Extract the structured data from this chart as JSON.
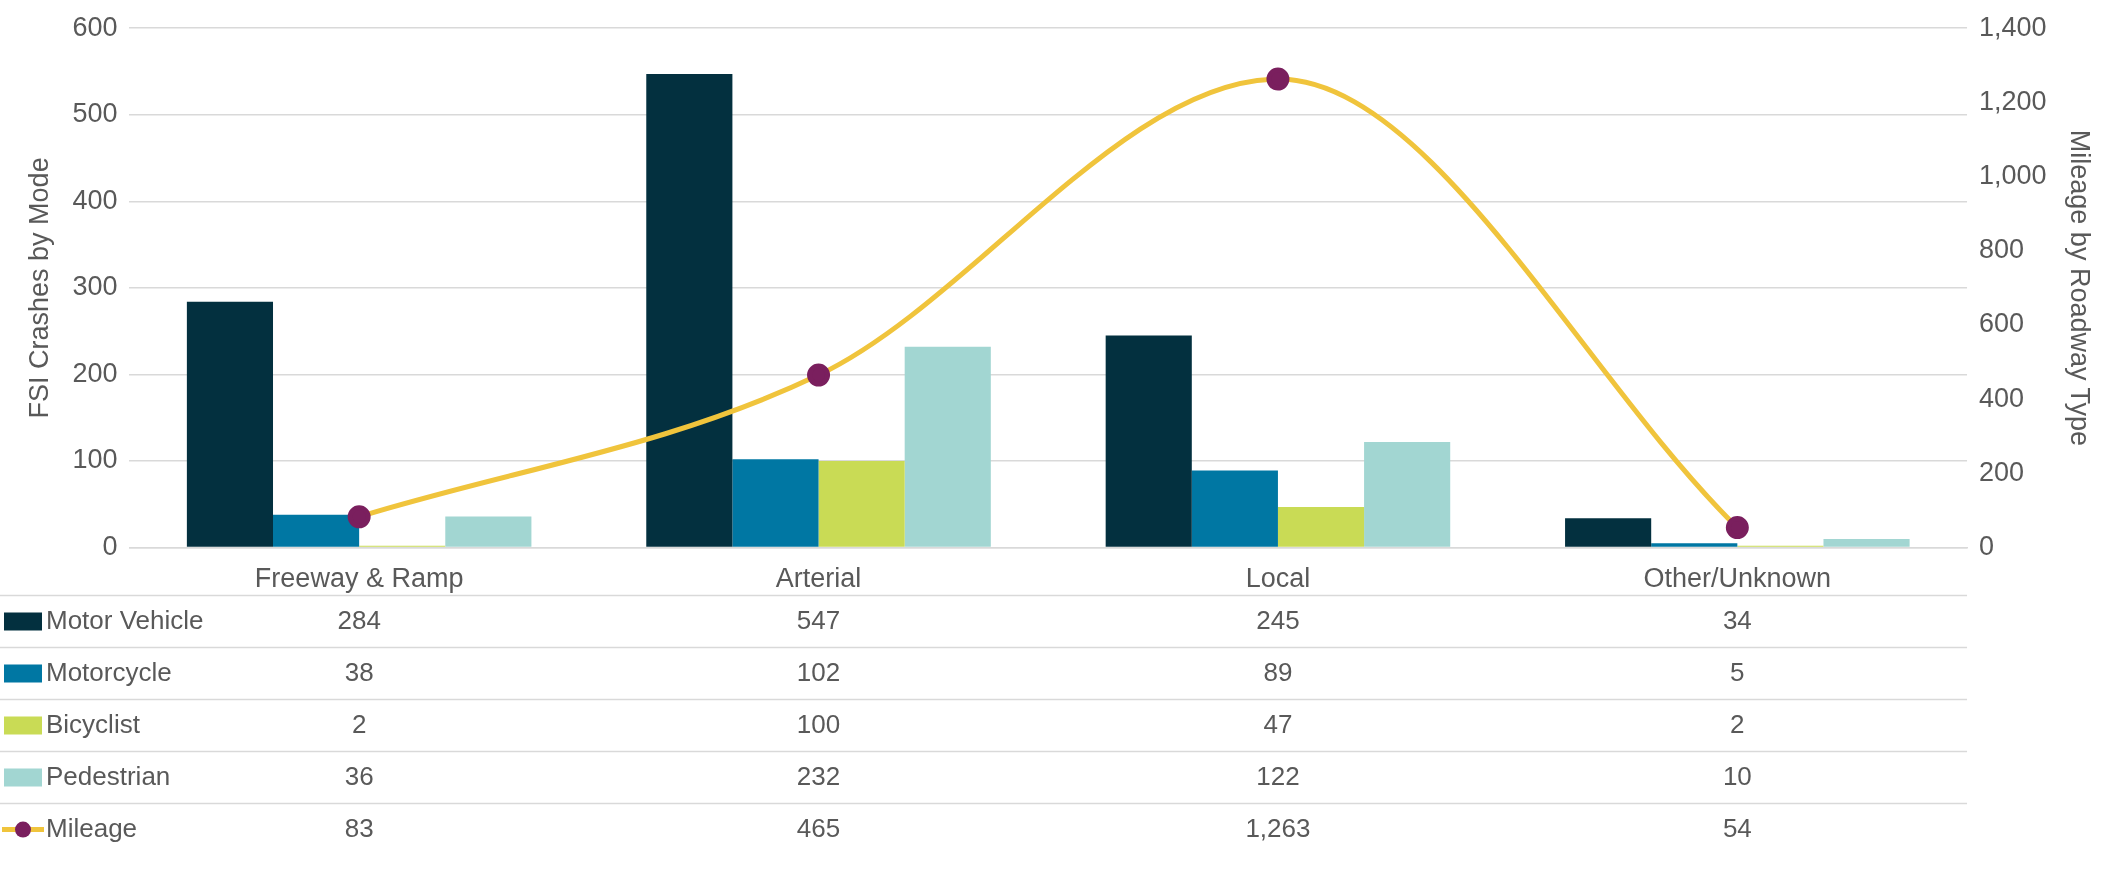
{
  "chart_data": {
    "type": "bar",
    "ylabel": "FSI Crashes by Mode",
    "y2label": "Mileage by Roadway Type",
    "categories": [
      "Freeway & Ramp",
      "Arterial",
      "Local",
      "Other/Unknown"
    ],
    "series": [
      {
        "name": "Motor Vehicle",
        "color": "#03303f",
        "values": [
          284,
          547,
          245,
          34
        ],
        "value_labels": [
          "284",
          "547",
          "245",
          "34"
        ]
      },
      {
        "name": "Motorcycle",
        "color": "#0077a3",
        "values": [
          38,
          102,
          89,
          5
        ],
        "value_labels": [
          "38",
          "102",
          "89",
          "5"
        ]
      },
      {
        "name": "Bicyclist",
        "color": "#c9db55",
        "values": [
          2,
          100,
          47,
          2
        ],
        "value_labels": [
          "2",
          "100",
          "47",
          "2"
        ]
      },
      {
        "name": "Pedestrian",
        "color": "#a2d6d2",
        "values": [
          36,
          232,
          122,
          10
        ],
        "value_labels": [
          "36",
          "232",
          "122",
          "10"
        ]
      },
      {
        "name": "Mileage",
        "type": "line",
        "axis": "y2",
        "color": "#f0c43c",
        "values": [
          83,
          465,
          1263,
          54
        ],
        "value_labels": [
          "83",
          "465",
          "1,263",
          "54"
        ]
      }
    ],
    "ylim": [
      0,
      600
    ],
    "yticks": [
      0,
      100,
      200,
      300,
      400,
      500,
      600
    ],
    "y2lim": [
      0,
      1400
    ],
    "y2ticks": [
      0,
      {
        "value": 200,
        "label": "200"
      },
      {
        "value": 400,
        "label": "400"
      },
      {
        "value": 600,
        "label": "600"
      },
      {
        "value": 800,
        "label": "800"
      },
      {
        "value": 1000,
        "label": "1,000"
      },
      {
        "value": 1200,
        "label": "1,200"
      },
      {
        "value": 1400,
        "label": "1,400"
      }
    ],
    "grid": "y",
    "legend": "bottom",
    "marker": "circle",
    "line_style": "solid"
  }
}
